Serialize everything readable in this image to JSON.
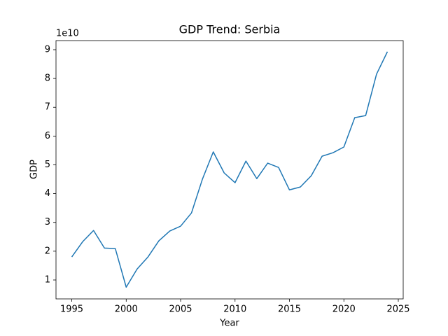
{
  "chart_data": {
    "type": "line",
    "title": "GDP Trend: Serbia",
    "x_label": "Year",
    "y_label": "GDP",
    "offset_text": "1e10",
    "x": [
      1995,
      1996,
      1997,
      1998,
      1999,
      2000,
      2001,
      2002,
      2003,
      2004,
      2005,
      2006,
      2007,
      2008,
      2009,
      2010,
      2011,
      2012,
      2013,
      2014,
      2015,
      2016,
      2017,
      2018,
      2019,
      2020,
      2021,
      2022,
      2023,
      2024
    ],
    "series": [
      {
        "color": "#1f77b4",
        "values": [
          1.8,
          2.33,
          2.72,
          2.11,
          2.09,
          0.75,
          1.38,
          1.8,
          2.36,
          2.7,
          2.87,
          3.33,
          4.5,
          5.45,
          4.72,
          4.38,
          5.13,
          4.52,
          5.06,
          4.91,
          4.13,
          4.23,
          4.62,
          5.3,
          5.42,
          5.62,
          6.64,
          6.71,
          8.15,
          8.93
        ]
      }
    ],
    "xlim": [
      1993.55,
      2025.45
    ],
    "xticks": [
      1995,
      2000,
      2005,
      2010,
      2015,
      2020,
      2025
    ],
    "ylim": [
      0.343,
      9.316
    ],
    "yticks": [
      1,
      2,
      3,
      4,
      5,
      6,
      7,
      8,
      9
    ],
    "grid": false
  }
}
